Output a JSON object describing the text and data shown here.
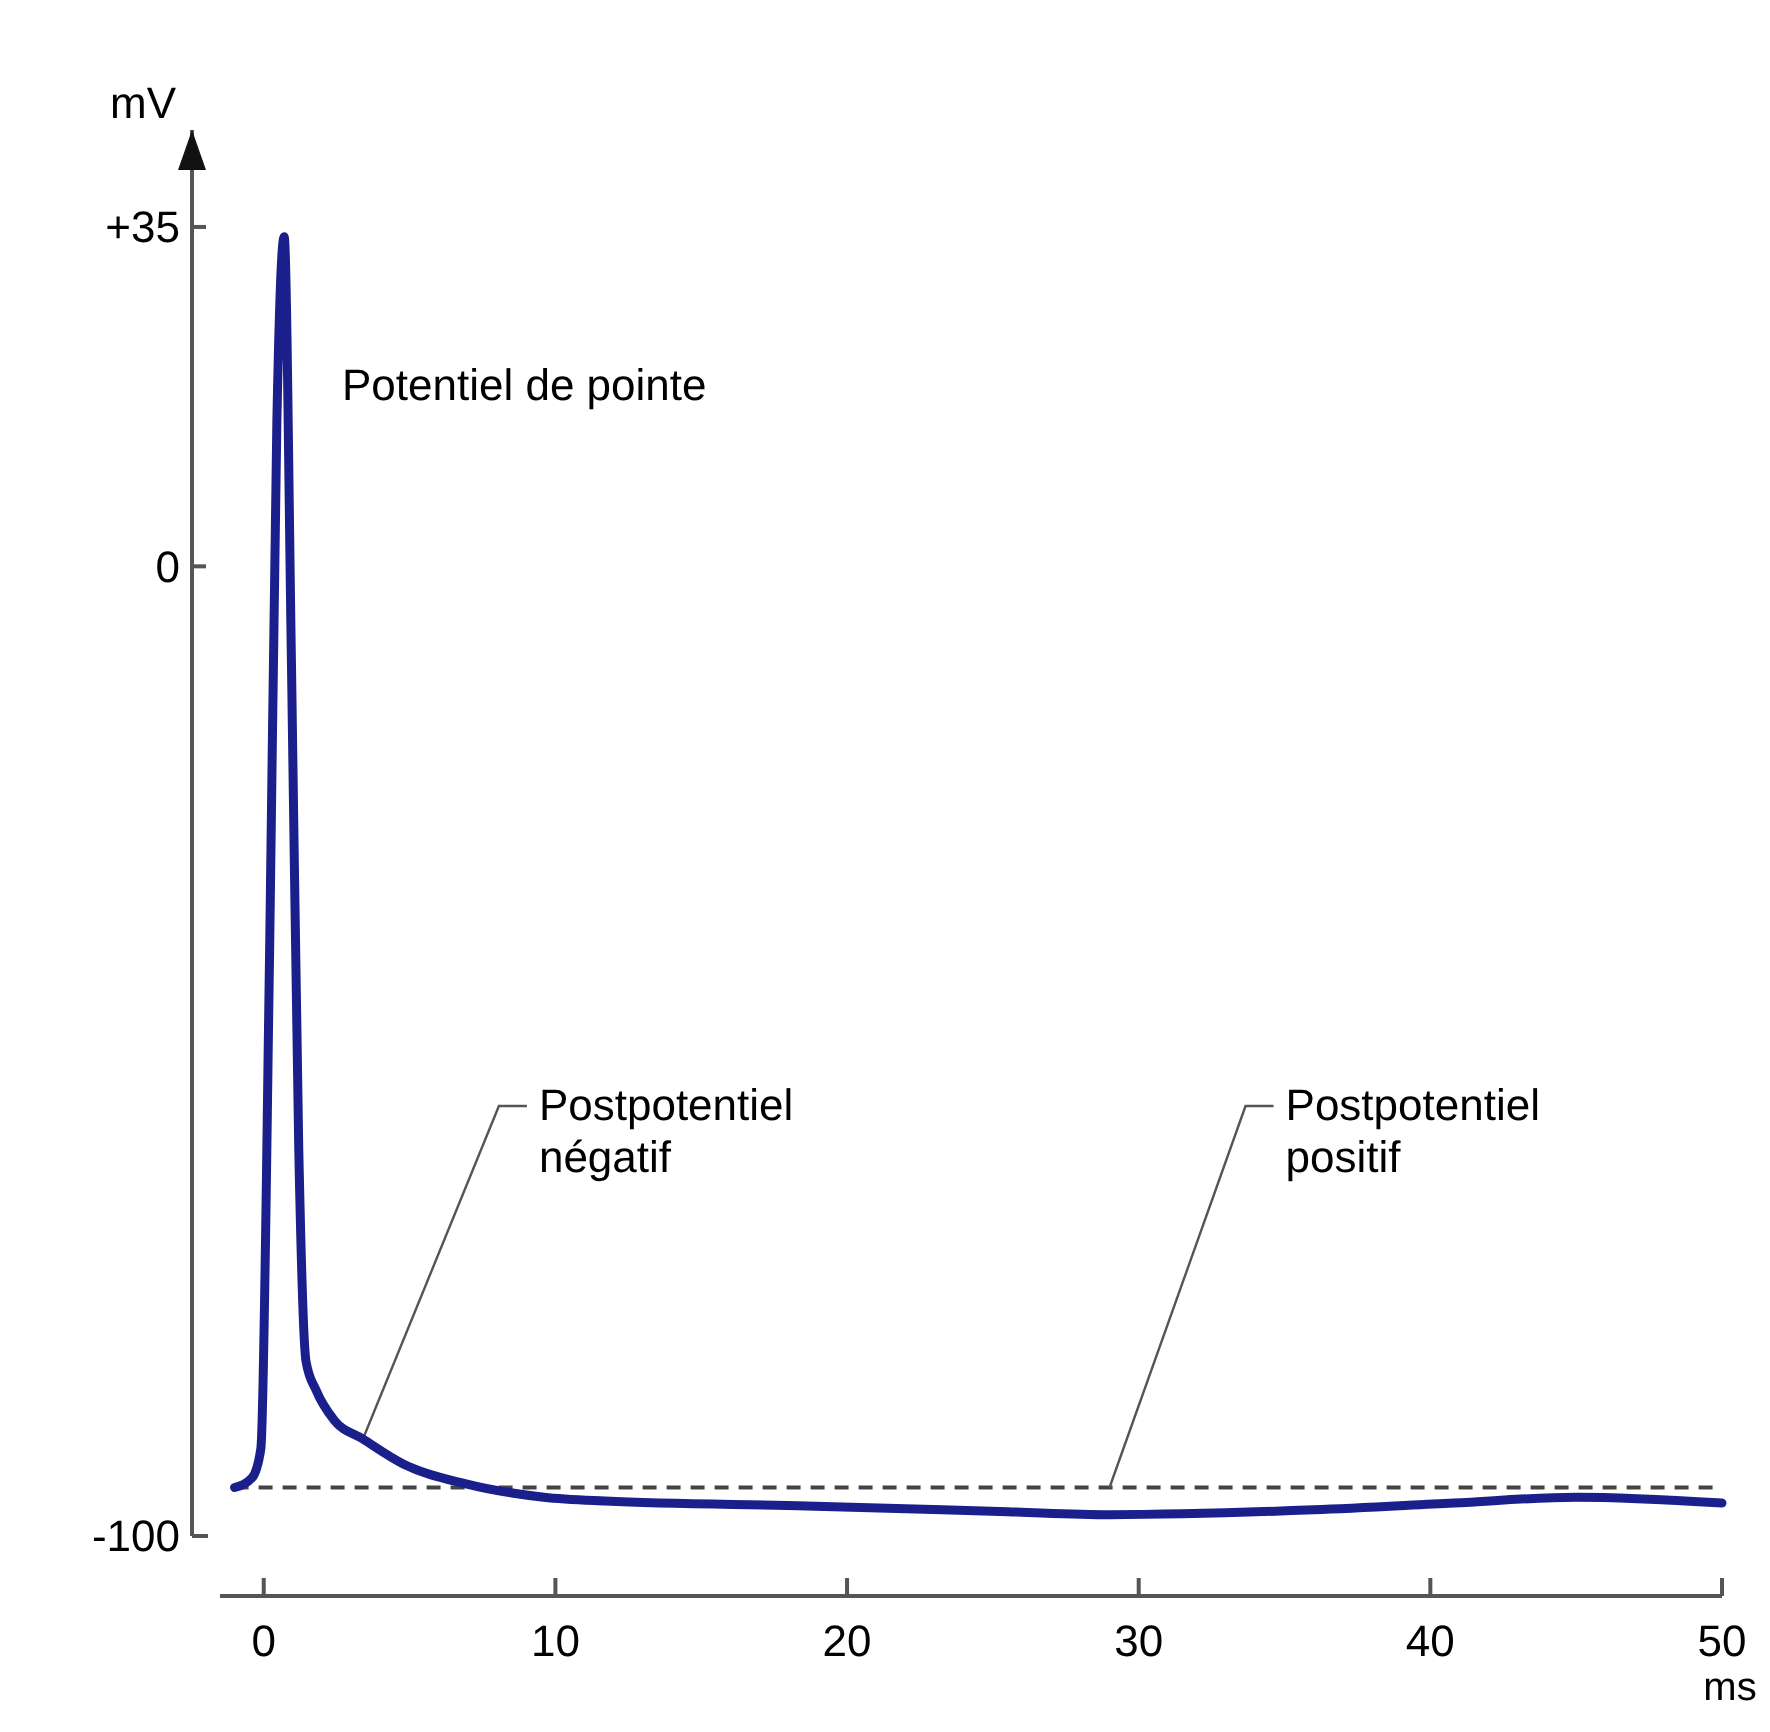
{
  "chart_data": {
    "type": "line",
    "xlabel": "ms",
    "ylabel": "mV",
    "x": [
      -1,
      -0.4,
      -0.1,
      0.2,
      0.45,
      0.7,
      0.95,
      1.2,
      1.45,
      1.8,
      2.4,
      3.4,
      4.8,
      6.9,
      9.6,
      11.7,
      18.6,
      25.5,
      29,
      36,
      40.8,
      45,
      50
    ],
    "series": [
      {
        "color": "#1a1f8c",
        "values": [
          -95,
          -94,
          -91,
          -40,
          15,
          34,
          -10,
          -60,
          -82,
          -85,
          -88,
          -90,
          -92.6,
          -94.6,
          -96,
          -96.4,
          -96.9,
          -97.5,
          -97.8,
          -97.3,
          -96.6,
          -96,
          -96.6
        ]
      }
    ],
    "xlim": [
      -1.5,
      50
    ],
    "xticks": [
      0,
      10,
      20,
      30,
      40,
      50
    ],
    "ylim": [
      -100,
      45
    ],
    "yticks": [
      {
        "value": 35,
        "label": "+35"
      },
      0,
      -100
    ],
    "grid": false,
    "marker": "none",
    "line_style": "solid",
    "ref_lines": [
      {
        "axis": "y",
        "value": -95,
        "line_style": "dashed",
        "color": "#444444"
      }
    ],
    "annotations": [
      "Potentiel de pointe",
      {
        "text": "Postpotentiel\nnégatif",
        "x": 3.4,
        "y": -90
      },
      {
        "text": "Postpotentiel\npositif",
        "x": 29,
        "y": -95
      }
    ]
  }
}
